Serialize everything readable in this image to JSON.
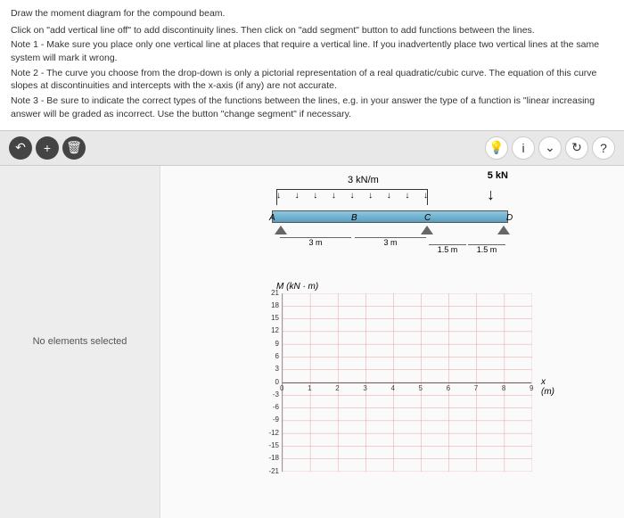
{
  "header": {
    "title": "Draw the moment diagram for the compound beam.",
    "note0": "Click on \"add vertical line off\" to add discontinuity lines. Then click on \"add segment\" button to add functions between the lines.",
    "note1": "Note 1 - Make sure you place only one vertical line at places that require a vertical line. If you inadvertently place two vertical lines at the same system will mark it wrong.",
    "note2": "Note 2 - The curve you choose from the drop-down is only a pictorial representation of a real quadratic/cubic curve. The equation of this curve slopes at discontinuities and intercepts with the x-axis (if any) are not accurate.",
    "note3": "Note 3 - Be sure to indicate the correct types of the functions between the lines, e.g. in your answer the type of a function is \"linear increasing answer will be graded as incorrect. Use the button \"change segment\" if necessary."
  },
  "sidebar": {
    "status": "No elements selected"
  },
  "beam": {
    "dist_load": "3 kN/m",
    "point_force": "5 kN",
    "ptA": "A",
    "ptB": "B",
    "ptC": "C",
    "ptD": "D",
    "dim1": "3 m",
    "dim2": "3 m",
    "dim3": "1.5 m",
    "dim4": "1.5 m"
  },
  "graph": {
    "title": "M (kN · m)",
    "x_unit": "x (m)",
    "y_ticks": [
      "21",
      "18",
      "15",
      "12",
      "9",
      "6",
      "3",
      "0",
      "-3",
      "-6",
      "-9",
      "-12",
      "-15",
      "-18",
      "-21"
    ],
    "x_ticks": [
      "0",
      "1",
      "2",
      "3",
      "4",
      "5",
      "6",
      "7",
      "8",
      "9"
    ],
    "grid_color": "#e8a0a0",
    "y_min": -21,
    "y_max": 21,
    "x_min": 0,
    "x_max": 9
  }
}
